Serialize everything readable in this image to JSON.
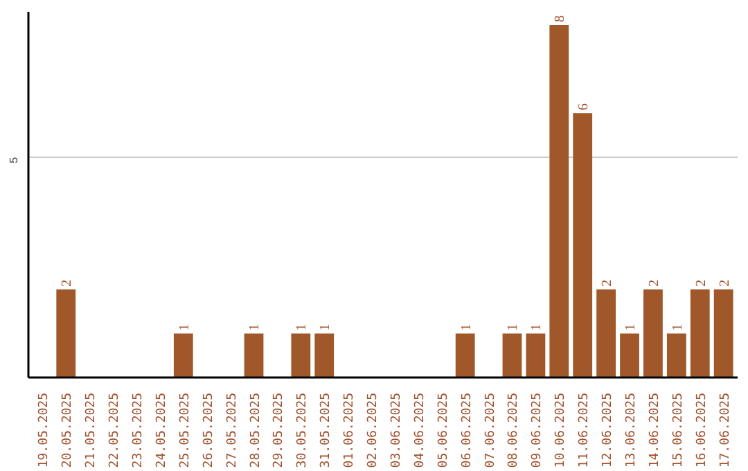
{
  "chart_data": {
    "type": "bar",
    "categories": [
      "19.05.2025",
      "20.05.2025",
      "21.05.2025",
      "22.05.2025",
      "23.05.2025",
      "24.05.2025",
      "25.05.2025",
      "26.05.2025",
      "27.05.2025",
      "28.05.2025",
      "29.05.2025",
      "30.05.2025",
      "31.05.2025",
      "01.06.2025",
      "02.06.2025",
      "03.06.2025",
      "04.06.2025",
      "05.06.2025",
      "06.06.2025",
      "07.06.2025",
      "08.06.2025",
      "09.06.2025",
      "10.06.2025",
      "11.06.2025",
      "12.06.2025",
      "13.06.2025",
      "14.06.2025",
      "15.06.2025",
      "16.06.2025",
      "17.06.2025"
    ],
    "values": [
      0,
      2,
      0,
      0,
      0,
      0,
      1,
      0,
      0,
      1,
      0,
      1,
      1,
      0,
      0,
      0,
      0,
      0,
      1,
      0,
      1,
      1,
      8,
      6,
      2,
      1,
      2,
      1,
      2,
      2
    ],
    "value_labels": [
      null,
      "2",
      null,
      null,
      null,
      null,
      "1",
      null,
      null,
      "1",
      null,
      "1",
      "1",
      null,
      null,
      null,
      null,
      null,
      "1",
      null,
      "1",
      "1",
      "8",
      "6",
      "2",
      "1",
      "2",
      "1",
      "2",
      "2"
    ],
    "color": "#a0582a",
    "ylim": [
      0,
      8.3
    ],
    "yticks": [
      5
    ],
    "grid": "y"
  }
}
